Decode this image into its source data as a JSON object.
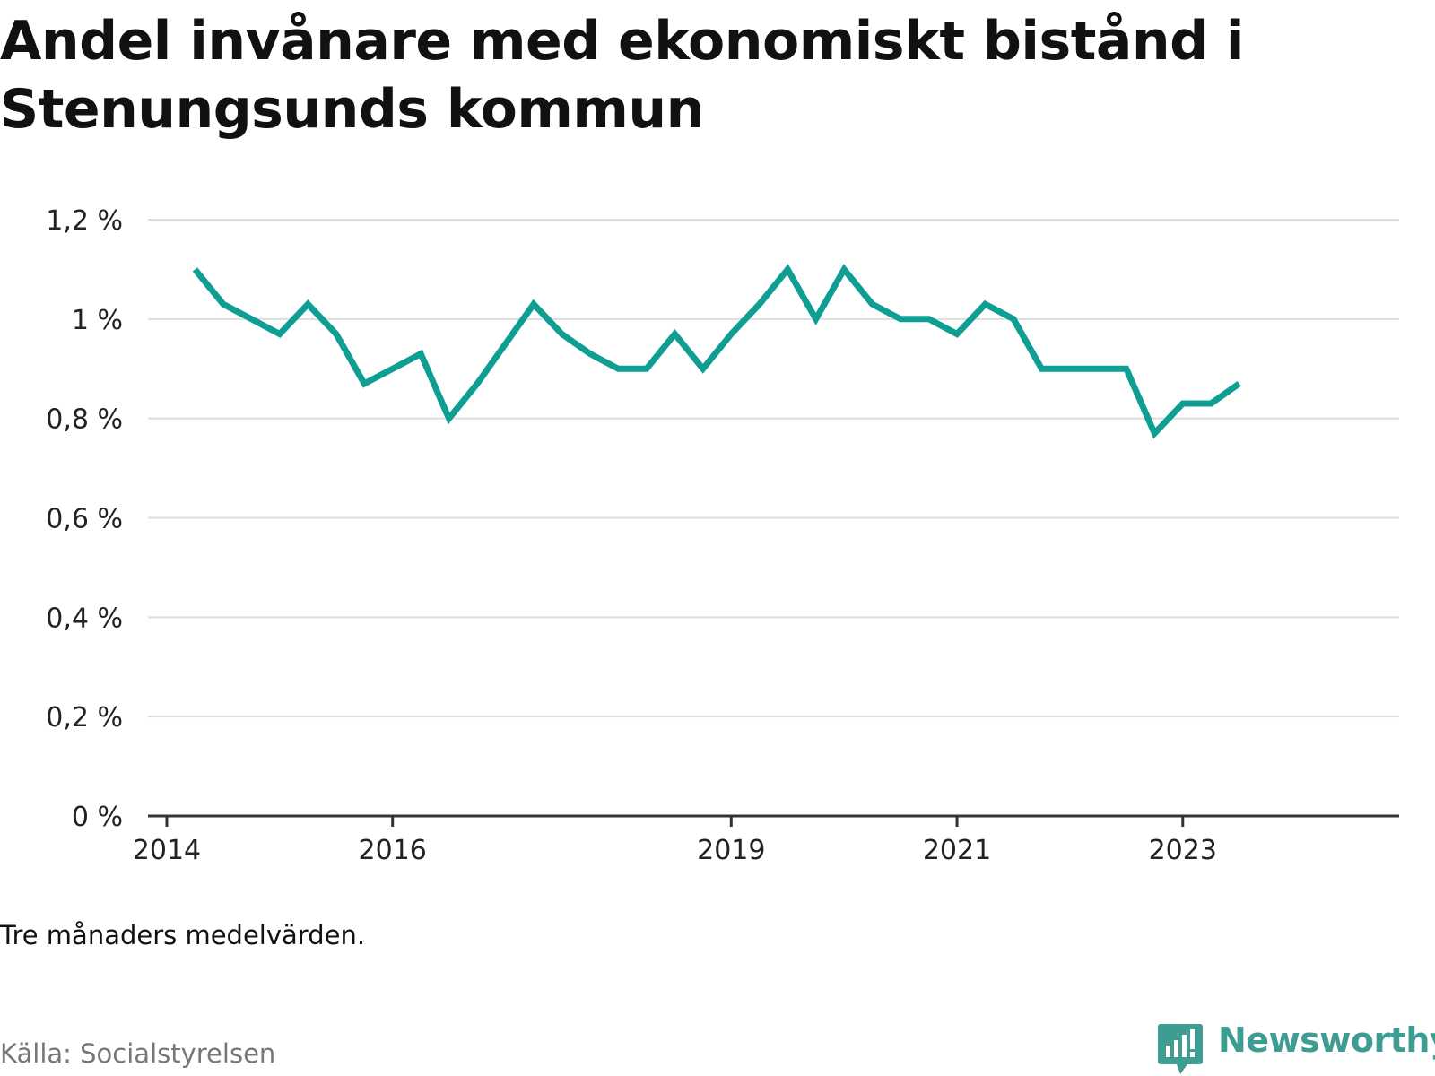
{
  "title": "Andel invånare med ekonomiskt bistånd i Stenungsunds kommun",
  "note": "Tre månaders medelvärden.",
  "source": "Källa: Socialstyrelsen",
  "brand": {
    "name": "Newsworthy",
    "icon": "bar-chart-speech-bubble-icon",
    "color": "#3f9c93"
  },
  "colors": {
    "line": "#0f9e93",
    "grid": "#dddddd",
    "axis": "#333333"
  },
  "chart_data": {
    "type": "line",
    "ylim": [
      0,
      1.2
    ],
    "y_ticks": [
      {
        "value": 0,
        "label": "0 %"
      },
      {
        "value": 0.2,
        "label": "0,2 %"
      },
      {
        "value": 0.4,
        "label": "0,4 %"
      },
      {
        "value": 0.6,
        "label": "0,6 %"
      },
      {
        "value": 0.8,
        "label": "0,8 %"
      },
      {
        "value": 1.0,
        "label": "1 %"
      },
      {
        "value": 1.2,
        "label": "1,2 %"
      }
    ],
    "x_ticks": [
      {
        "value": "2014-01",
        "label": "2014"
      },
      {
        "value": "2016-01",
        "label": "2016"
      },
      {
        "value": "2019-01",
        "label": "2019"
      },
      {
        "value": "2021-01",
        "label": "2021"
      },
      {
        "value": "2023-01",
        "label": "2023"
      }
    ],
    "xlim": [
      "2013-11",
      "2024-12"
    ],
    "grid": true,
    "series": [
      {
        "points": [
          {
            "x": "2014-04",
            "y": 1.1
          },
          {
            "x": "2014-07",
            "y": 1.03
          },
          {
            "x": "2014-10",
            "y": 1.0
          },
          {
            "x": "2015-01",
            "y": 0.97
          },
          {
            "x": "2015-04",
            "y": 1.03
          },
          {
            "x": "2015-07",
            "y": 0.97
          },
          {
            "x": "2015-10",
            "y": 0.87
          },
          {
            "x": "2016-01",
            "y": 0.9
          },
          {
            "x": "2016-04",
            "y": 0.93
          },
          {
            "x": "2016-07",
            "y": 0.8
          },
          {
            "x": "2016-10",
            "y": 0.87
          },
          {
            "x": "2017-01",
            "y": 0.95
          },
          {
            "x": "2017-04",
            "y": 1.03
          },
          {
            "x": "2017-07",
            "y": 0.97
          },
          {
            "x": "2017-10",
            "y": 0.93
          },
          {
            "x": "2018-01",
            "y": 0.9
          },
          {
            "x": "2018-04",
            "y": 0.9
          },
          {
            "x": "2018-07",
            "y": 0.97
          },
          {
            "x": "2018-10",
            "y": 0.9
          },
          {
            "x": "2019-01",
            "y": 0.97
          },
          {
            "x": "2019-04",
            "y": 1.03
          },
          {
            "x": "2019-07",
            "y": 1.1
          },
          {
            "x": "2019-10",
            "y": 1.0
          },
          {
            "x": "2020-01",
            "y": 1.1
          },
          {
            "x": "2020-04",
            "y": 1.03
          },
          {
            "x": "2020-07",
            "y": 1.0
          },
          {
            "x": "2020-10",
            "y": 1.0
          },
          {
            "x": "2021-01",
            "y": 0.97
          },
          {
            "x": "2021-04",
            "y": 1.03
          },
          {
            "x": "2021-07",
            "y": 1.0
          },
          {
            "x": "2021-10",
            "y": 0.9
          },
          {
            "x": "2022-01",
            "y": 0.9
          },
          {
            "x": "2022-04",
            "y": 0.9
          },
          {
            "x": "2022-07",
            "y": 0.9
          },
          {
            "x": "2022-10",
            "y": 0.77
          },
          {
            "x": "2023-01",
            "y": 0.83
          },
          {
            "x": "2023-04",
            "y": 0.83
          },
          {
            "x": "2023-07",
            "y": 0.87
          }
        ]
      }
    ]
  }
}
